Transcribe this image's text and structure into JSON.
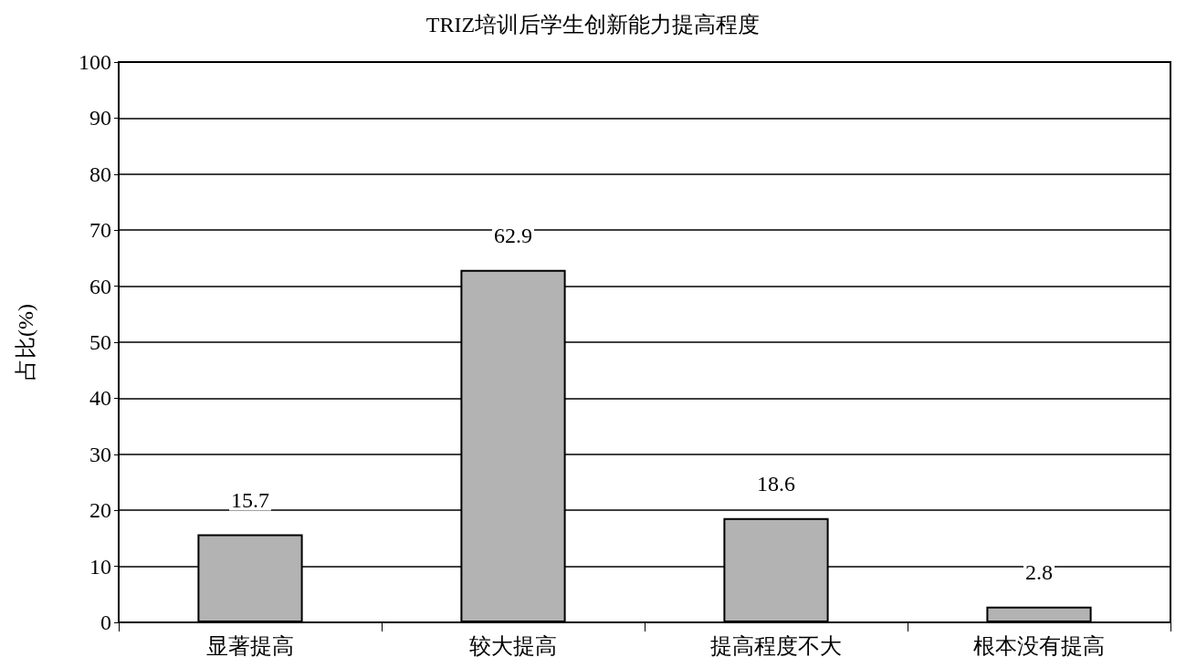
{
  "chart_data": {
    "type": "bar",
    "title": "TRIZ培训后学生创新能力提高程度",
    "ylabel": "占比(%)",
    "categories": [
      "显著提高",
      "较大提高",
      "提高程度不大",
      "根本没有提高"
    ],
    "values": [
      15.7,
      62.9,
      18.6,
      2.8
    ],
    "color": "#b3b3b3",
    "ylim": [
      0,
      100
    ],
    "yticks": [
      0,
      10,
      20,
      30,
      40,
      50,
      60,
      70,
      80,
      90,
      100
    ],
    "grid": "y",
    "data_labels": true
  }
}
